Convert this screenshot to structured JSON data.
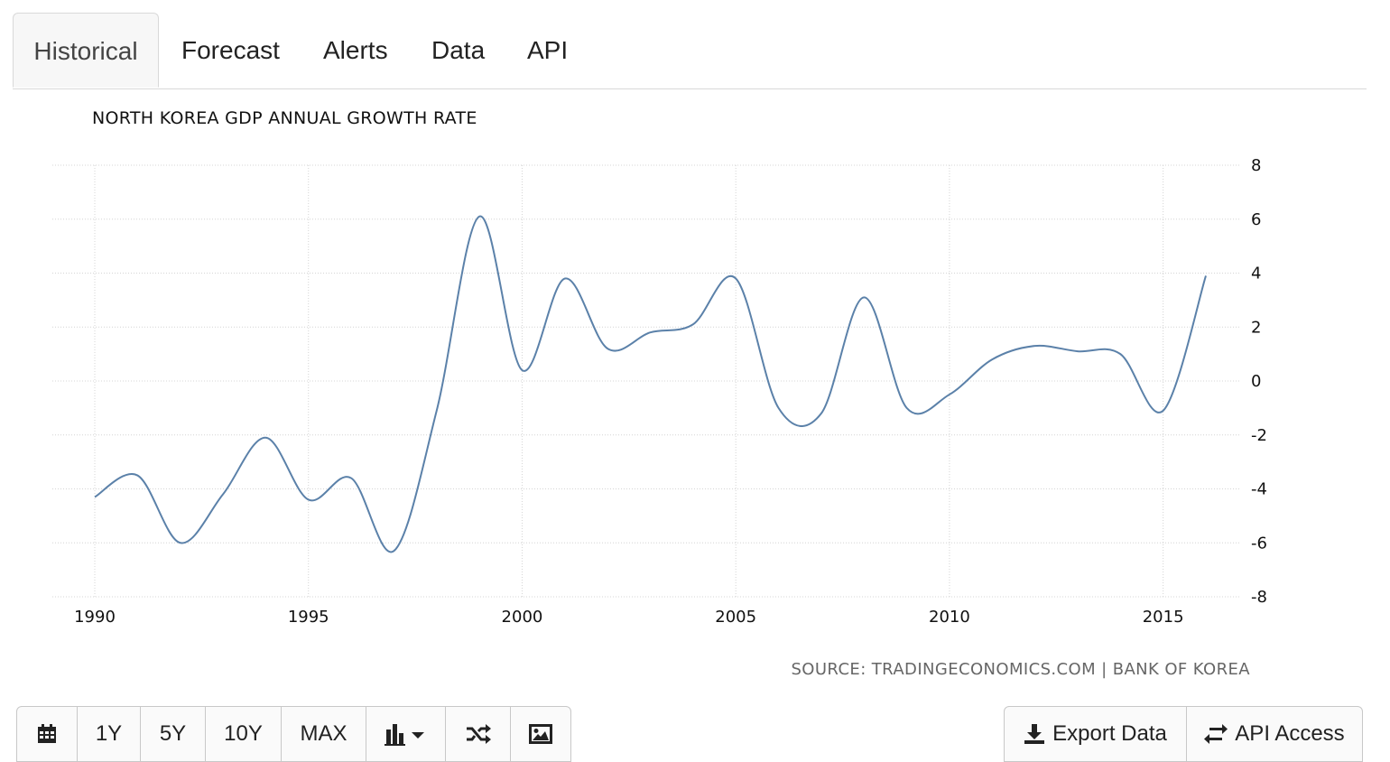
{
  "tabs": [
    {
      "label": "Historical",
      "active": true
    },
    {
      "label": "Forecast"
    },
    {
      "label": "Alerts"
    },
    {
      "label": "Data"
    },
    {
      "label": "API"
    }
  ],
  "toolbar": {
    "calendar_icon": "calendar-icon",
    "ranges": [
      "1Y",
      "5Y",
      "10Y",
      "MAX"
    ],
    "chart_type_icon": "bar-chart-icon",
    "compare_icon": "shuffle-icon",
    "image_icon": "image-icon",
    "export_label": "Export Data",
    "api_label": "API Access"
  },
  "source_text": "SOURCE: TRADINGECONOMICS.COM | BANK OF KOREA",
  "chart_data": {
    "type": "line",
    "title": "NORTH KOREA GDP ANNUAL GROWTH RATE",
    "xlabel": "",
    "ylabel": "",
    "x": [
      1990,
      1991,
      1992,
      1993,
      1994,
      1995,
      1996,
      1997,
      1998,
      1999,
      2000,
      2001,
      2002,
      2003,
      2004,
      2005,
      2006,
      2007,
      2008,
      2009,
      2010,
      2011,
      2012,
      2013,
      2014,
      2015,
      2016
    ],
    "series": [
      {
        "name": "",
        "color": "#5b81a9",
        "values": [
          -4.3,
          -3.5,
          -6.0,
          -4.2,
          -2.1,
          -4.4,
          -3.6,
          -6.3,
          -1.1,
          6.1,
          0.4,
          3.8,
          1.2,
          1.8,
          2.1,
          3.8,
          -1.0,
          -1.2,
          3.1,
          -1.0,
          -0.5,
          0.8,
          1.3,
          1.1,
          1.0,
          -1.1,
          3.9
        ]
      }
    ],
    "xticks": [
      1990,
      1995,
      2000,
      2005,
      2010,
      2015
    ],
    "yticks": [
      8,
      6,
      4,
      2,
      0,
      -2,
      -4,
      -6,
      -8
    ],
    "xlim": [
      1990,
      2016
    ],
    "ylim": [
      -8,
      8
    ],
    "grid": true,
    "y_axis_position": "right"
  }
}
